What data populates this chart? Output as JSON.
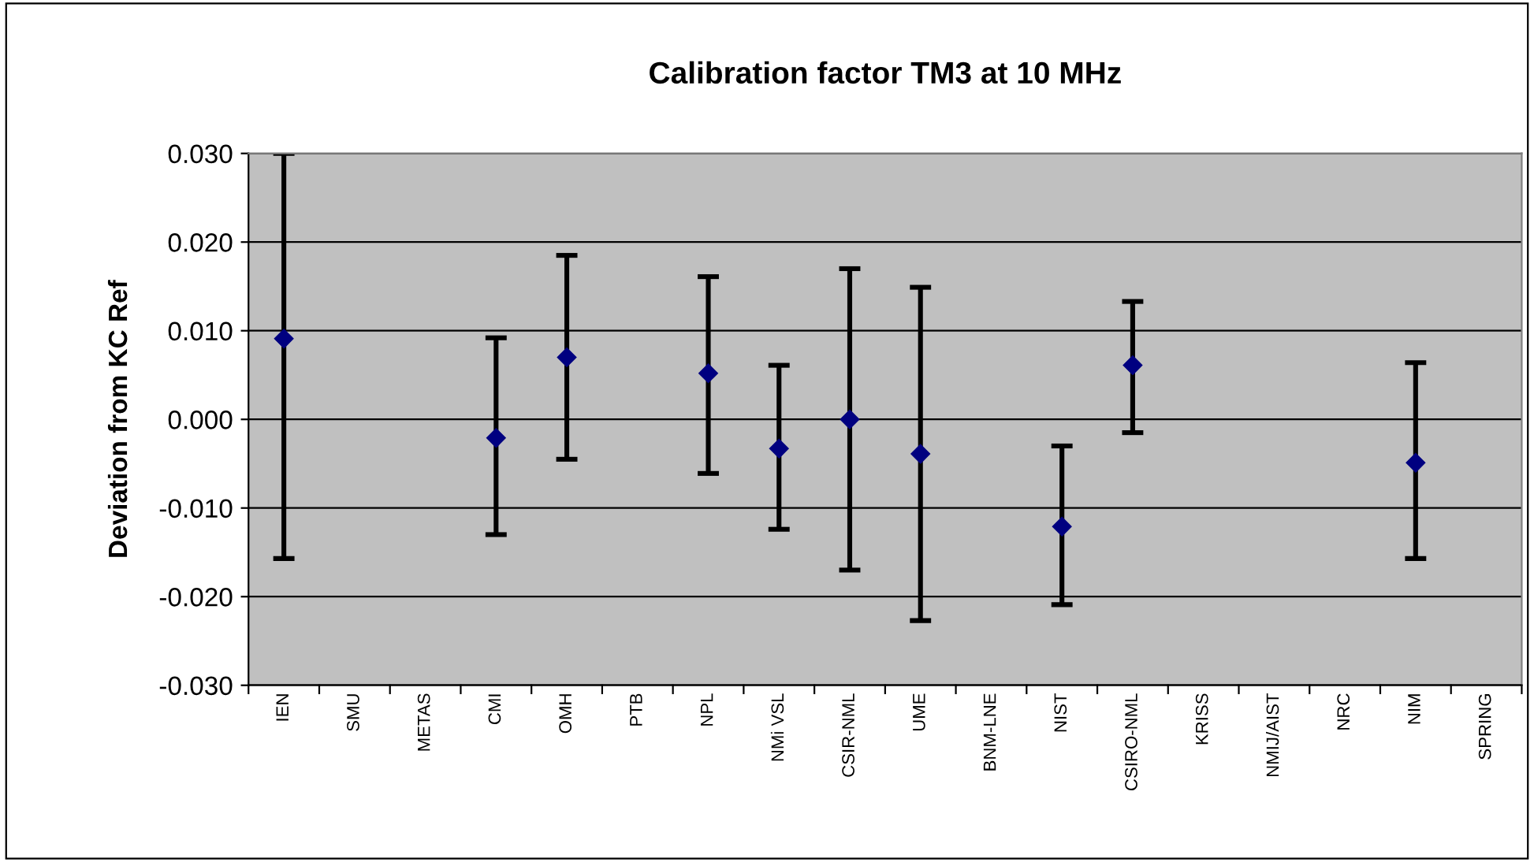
{
  "chart_data": {
    "type": "scatter",
    "title": "Calibration factor TM3 at 10 MHz",
    "ylabel": "Deviation from KC Ref",
    "categories": [
      "IEN",
      "SMU",
      "METAS",
      "CMI",
      "OMH",
      "PTB",
      "NPL",
      "NMi VSL",
      "CSIR-NML",
      "UME",
      "BNM-LNE",
      "NIST",
      "CSIRO-NML",
      "KRISS",
      "NMIJ/AIST",
      "NRC",
      "NIM",
      "SPRING"
    ],
    "series": [
      {
        "color": "#000080",
        "values": [
          0.0091,
          null,
          null,
          -0.0021,
          0.007,
          null,
          0.0052,
          -0.0033,
          0.0,
          -0.0039,
          null,
          -0.0121,
          0.0061,
          null,
          null,
          null,
          -0.0049,
          null
        ],
        "errors": [
          [
            -0.0157,
            0.03
          ],
          null,
          null,
          [
            -0.013,
            0.0092
          ],
          [
            -0.0045,
            0.0185
          ],
          null,
          [
            -0.0061,
            0.0161
          ],
          [
            -0.0124,
            0.0061
          ],
          [
            -0.017,
            0.017
          ],
          [
            -0.0227,
            0.0149
          ],
          null,
          [
            -0.0209,
            -0.003
          ],
          [
            -0.0015,
            0.0133
          ],
          null,
          null,
          null,
          [
            -0.0157,
            0.0064
          ],
          null
        ]
      }
    ],
    "ylim": [
      -0.03,
      0.03
    ],
    "yticks": [
      {
        "value": -0.03,
        "label": "-0.030"
      },
      {
        "value": -0.02,
        "label": "-0.020"
      },
      {
        "value": -0.01,
        "label": "-0.010"
      },
      {
        "value": 0,
        "label": "0.000"
      },
      {
        "value": 0.01,
        "label": "0.010"
      },
      {
        "value": 0.02,
        "label": "0.020"
      },
      {
        "value": 0.03,
        "label": "0.030"
      }
    ],
    "grid": "y",
    "marker": "diamond",
    "legend": false
  }
}
